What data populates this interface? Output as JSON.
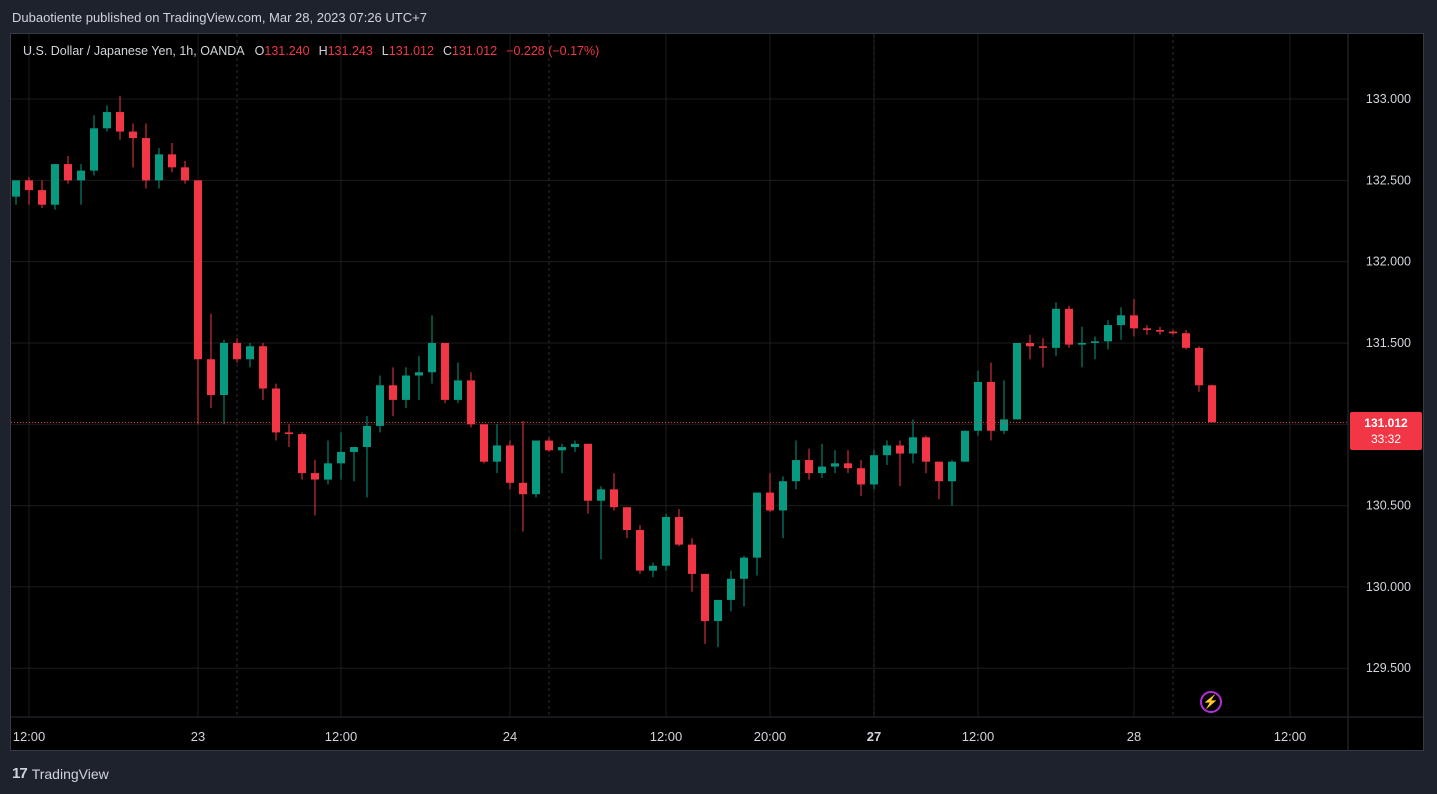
{
  "header": {
    "published": "Dubaotiente published on TradingView.com, Mar 28, 2023 07:26 UTC+7"
  },
  "legend": {
    "symbol": "U.S. Dollar / Japanese Yen, 1h, OANDA",
    "o_label": "O",
    "o_value": "131.240",
    "h_label": "H",
    "h_value": "131.243",
    "l_label": "L",
    "l_value": "131.012",
    "c_label": "C",
    "c_value": "131.012",
    "change": "−0.228 (−0.17%)"
  },
  "last_price": {
    "value": "131.012",
    "countdown": "33:32"
  },
  "footer": {
    "logo_mark": "17",
    "brand": "TradingView"
  },
  "colors": {
    "up": "#089981",
    "down": "#f23645",
    "background": "#000000",
    "grid": "#1c1c1c",
    "bolt": "#b32ed9"
  },
  "icons": {
    "bolt": "lightning-bolt-icon",
    "logo": "tradingview-logo-icon"
  },
  "chart_data": {
    "type": "candlestick",
    "ylim": [
      129.2,
      133.4
    ],
    "y_ticks": [
      "133.000",
      "132.500",
      "132.000",
      "131.500",
      "131.000",
      "130.500",
      "130.000",
      "129.500"
    ],
    "y_tick_values": [
      133.0,
      132.5,
      132.0,
      131.5,
      131.0,
      130.5,
      130.0,
      129.5
    ],
    "x_ticks": [
      {
        "label": "12:00",
        "bar": 1,
        "bold": false
      },
      {
        "label": "23",
        "bar": 14,
        "bold": false
      },
      {
        "label": "12:00",
        "bar": 25,
        "bold": false
      },
      {
        "label": "24",
        "bar": 38,
        "bold": false
      },
      {
        "label": "12:00",
        "bar": 50,
        "bold": false
      },
      {
        "label": "20:00",
        "bar": 58,
        "bold": false
      },
      {
        "label": "27",
        "bar": 66,
        "bold": true
      },
      {
        "label": "12:00",
        "bar": 74,
        "bold": false
      },
      {
        "label": "28",
        "bar": 86,
        "bold": false
      },
      {
        "label": "12:00",
        "bar": 98,
        "bold": false
      }
    ],
    "dashed_separators": [
      17,
      41,
      66,
      89
    ],
    "last_price": 131.012,
    "candles": [
      {
        "o": 132.4,
        "h": 132.5,
        "l": 132.35,
        "c": 132.5
      },
      {
        "o": 132.5,
        "h": 132.52,
        "l": 132.35,
        "c": 132.44
      },
      {
        "o": 132.44,
        "h": 132.5,
        "l": 132.33,
        "c": 132.35
      },
      {
        "o": 132.35,
        "h": 132.6,
        "l": 132.32,
        "c": 132.6
      },
      {
        "o": 132.6,
        "h": 132.65,
        "l": 132.48,
        "c": 132.5
      },
      {
        "o": 132.5,
        "h": 132.6,
        "l": 132.35,
        "c": 132.56
      },
      {
        "o": 132.56,
        "h": 132.9,
        "l": 132.53,
        "c": 132.82
      },
      {
        "o": 132.82,
        "h": 132.96,
        "l": 132.8,
        "c": 132.92
      },
      {
        "o": 132.92,
        "h": 133.02,
        "l": 132.75,
        "c": 132.8
      },
      {
        "o": 132.8,
        "h": 132.85,
        "l": 132.58,
        "c": 132.76
      },
      {
        "o": 132.76,
        "h": 132.85,
        "l": 132.45,
        "c": 132.5
      },
      {
        "o": 132.5,
        "h": 132.7,
        "l": 132.45,
        "c": 132.66
      },
      {
        "o": 132.66,
        "h": 132.73,
        "l": 132.55,
        "c": 132.58
      },
      {
        "o": 132.58,
        "h": 132.62,
        "l": 132.48,
        "c": 132.5
      },
      {
        "o": 132.5,
        "h": 132.5,
        "l": 131.0,
        "c": 131.4
      },
      {
        "o": 131.4,
        "h": 131.68,
        "l": 131.1,
        "c": 131.18
      },
      {
        "o": 131.18,
        "h": 131.52,
        "l": 131.0,
        "c": 131.5
      },
      {
        "o": 131.5,
        "h": 131.53,
        "l": 131.38,
        "c": 131.4
      },
      {
        "o": 131.4,
        "h": 131.5,
        "l": 131.35,
        "c": 131.48
      },
      {
        "o": 131.48,
        "h": 131.5,
        "l": 131.15,
        "c": 131.22
      },
      {
        "o": 131.22,
        "h": 131.25,
        "l": 130.9,
        "c": 130.95
      },
      {
        "o": 130.95,
        "h": 131.0,
        "l": 130.86,
        "c": 130.94
      },
      {
        "o": 130.94,
        "h": 130.95,
        "l": 130.66,
        "c": 130.7
      },
      {
        "o": 130.7,
        "h": 130.78,
        "l": 130.44,
        "c": 130.66
      },
      {
        "o": 130.66,
        "h": 130.9,
        "l": 130.63,
        "c": 130.76
      },
      {
        "o": 130.76,
        "h": 130.95,
        "l": 130.66,
        "c": 130.83
      },
      {
        "o": 130.83,
        "h": 130.86,
        "l": 130.65,
        "c": 130.86
      },
      {
        "o": 130.86,
        "h": 131.05,
        "l": 130.55,
        "c": 130.99
      },
      {
        "o": 130.99,
        "h": 131.3,
        "l": 130.95,
        "c": 131.24
      },
      {
        "o": 131.24,
        "h": 131.35,
        "l": 131.05,
        "c": 131.15
      },
      {
        "o": 131.15,
        "h": 131.35,
        "l": 131.1,
        "c": 131.3
      },
      {
        "o": 131.3,
        "h": 131.42,
        "l": 131.15,
        "c": 131.32
      },
      {
        "o": 131.32,
        "h": 131.67,
        "l": 131.25,
        "c": 131.5
      },
      {
        "o": 131.5,
        "h": 131.5,
        "l": 131.13,
        "c": 131.15
      },
      {
        "o": 131.15,
        "h": 131.38,
        "l": 131.13,
        "c": 131.27
      },
      {
        "o": 131.27,
        "h": 131.32,
        "l": 130.98,
        "c": 131.0
      },
      {
        "o": 131.0,
        "h": 131.0,
        "l": 130.76,
        "c": 130.77
      },
      {
        "o": 130.77,
        "h": 131.0,
        "l": 130.7,
        "c": 130.87
      },
      {
        "o": 130.87,
        "h": 130.9,
        "l": 130.6,
        "c": 130.64
      },
      {
        "o": 130.64,
        "h": 131.02,
        "l": 130.34,
        "c": 130.57
      },
      {
        "o": 130.57,
        "h": 130.9,
        "l": 130.55,
        "c": 130.9
      },
      {
        "o": 130.9,
        "h": 130.92,
        "l": 130.83,
        "c": 130.84
      },
      {
        "o": 130.84,
        "h": 130.88,
        "l": 130.7,
        "c": 130.86
      },
      {
        "o": 130.86,
        "h": 130.9,
        "l": 130.83,
        "c": 130.88
      },
      {
        "o": 130.88,
        "h": 130.88,
        "l": 130.45,
        "c": 130.53
      },
      {
        "o": 130.53,
        "h": 130.62,
        "l": 130.17,
        "c": 130.6
      },
      {
        "o": 130.6,
        "h": 130.7,
        "l": 130.47,
        "c": 130.49
      },
      {
        "o": 130.49,
        "h": 130.49,
        "l": 130.3,
        "c": 130.35
      },
      {
        "o": 130.35,
        "h": 130.38,
        "l": 130.08,
        "c": 130.1
      },
      {
        "o": 130.1,
        "h": 130.15,
        "l": 130.06,
        "c": 130.13
      },
      {
        "o": 130.13,
        "h": 130.45,
        "l": 130.1,
        "c": 130.43
      },
      {
        "o": 130.43,
        "h": 130.48,
        "l": 130.25,
        "c": 130.26
      },
      {
        "o": 130.26,
        "h": 130.3,
        "l": 129.97,
        "c": 130.08
      },
      {
        "o": 130.08,
        "h": 130.08,
        "l": 129.65,
        "c": 129.79
      },
      {
        "o": 129.79,
        "h": 129.9,
        "l": 129.63,
        "c": 129.92
      },
      {
        "o": 129.92,
        "h": 130.1,
        "l": 129.85,
        "c": 130.05
      },
      {
        "o": 130.05,
        "h": 130.19,
        "l": 129.88,
        "c": 130.18
      },
      {
        "o": 130.18,
        "h": 130.58,
        "l": 130.07,
        "c": 130.58
      },
      {
        "o": 130.58,
        "h": 130.7,
        "l": 130.46,
        "c": 130.47
      },
      {
        "o": 130.47,
        "h": 130.68,
        "l": 130.3,
        "c": 130.65
      },
      {
        "o": 130.65,
        "h": 130.9,
        "l": 130.6,
        "c": 130.78
      },
      {
        "o": 130.78,
        "h": 130.85,
        "l": 130.66,
        "c": 130.7
      },
      {
        "o": 130.7,
        "h": 130.88,
        "l": 130.67,
        "c": 130.74
      },
      {
        "o": 130.74,
        "h": 130.84,
        "l": 130.7,
        "c": 130.76
      },
      {
        "o": 130.76,
        "h": 130.84,
        "l": 130.7,
        "c": 130.73
      },
      {
        "o": 130.73,
        "h": 130.78,
        "l": 130.56,
        "c": 130.63
      },
      {
        "o": 130.63,
        "h": 130.84,
        "l": 130.6,
        "c": 130.81
      },
      {
        "o": 130.81,
        "h": 130.9,
        "l": 130.75,
        "c": 130.87
      },
      {
        "o": 130.87,
        "h": 130.9,
        "l": 130.62,
        "c": 130.82
      },
      {
        "o": 130.82,
        "h": 131.03,
        "l": 130.76,
        "c": 130.92
      },
      {
        "o": 130.92,
        "h": 130.93,
        "l": 130.7,
        "c": 130.77
      },
      {
        "o": 130.77,
        "h": 130.77,
        "l": 130.54,
        "c": 130.65
      },
      {
        "o": 130.65,
        "h": 130.78,
        "l": 130.5,
        "c": 130.77
      },
      {
        "o": 130.77,
        "h": 130.96,
        "l": 130.77,
        "c": 130.96
      },
      {
        "o": 130.96,
        "h": 131.33,
        "l": 130.93,
        "c": 131.26
      },
      {
        "o": 131.26,
        "h": 131.38,
        "l": 130.9,
        "c": 130.96
      },
      {
        "o": 130.96,
        "h": 131.27,
        "l": 130.94,
        "c": 131.03
      },
      {
        "o": 131.03,
        "h": 131.5,
        "l": 131.03,
        "c": 131.5
      },
      {
        "o": 131.5,
        "h": 131.55,
        "l": 131.4,
        "c": 131.48
      },
      {
        "o": 131.48,
        "h": 131.53,
        "l": 131.35,
        "c": 131.47
      },
      {
        "o": 131.47,
        "h": 131.75,
        "l": 131.42,
        "c": 131.71
      },
      {
        "o": 131.71,
        "h": 131.73,
        "l": 131.47,
        "c": 131.49
      },
      {
        "o": 131.49,
        "h": 131.6,
        "l": 131.35,
        "c": 131.5
      },
      {
        "o": 131.5,
        "h": 131.54,
        "l": 131.4,
        "c": 131.51
      },
      {
        "o": 131.51,
        "h": 131.64,
        "l": 131.46,
        "c": 131.61
      },
      {
        "o": 131.61,
        "h": 131.72,
        "l": 131.52,
        "c": 131.67
      },
      {
        "o": 131.67,
        "h": 131.77,
        "l": 131.54,
        "c": 131.59
      },
      {
        "o": 131.59,
        "h": 131.61,
        "l": 131.55,
        "c": 131.58
      },
      {
        "o": 131.58,
        "h": 131.6,
        "l": 131.55,
        "c": 131.57
      },
      {
        "o": 131.57,
        "h": 131.58,
        "l": 131.55,
        "c": 131.56
      },
      {
        "o": 131.56,
        "h": 131.58,
        "l": 131.46,
        "c": 131.47
      },
      {
        "o": 131.47,
        "h": 131.48,
        "l": 131.2,
        "c": 131.24
      },
      {
        "o": 131.24,
        "h": 131.243,
        "l": 131.012,
        "c": 131.012
      }
    ]
  }
}
